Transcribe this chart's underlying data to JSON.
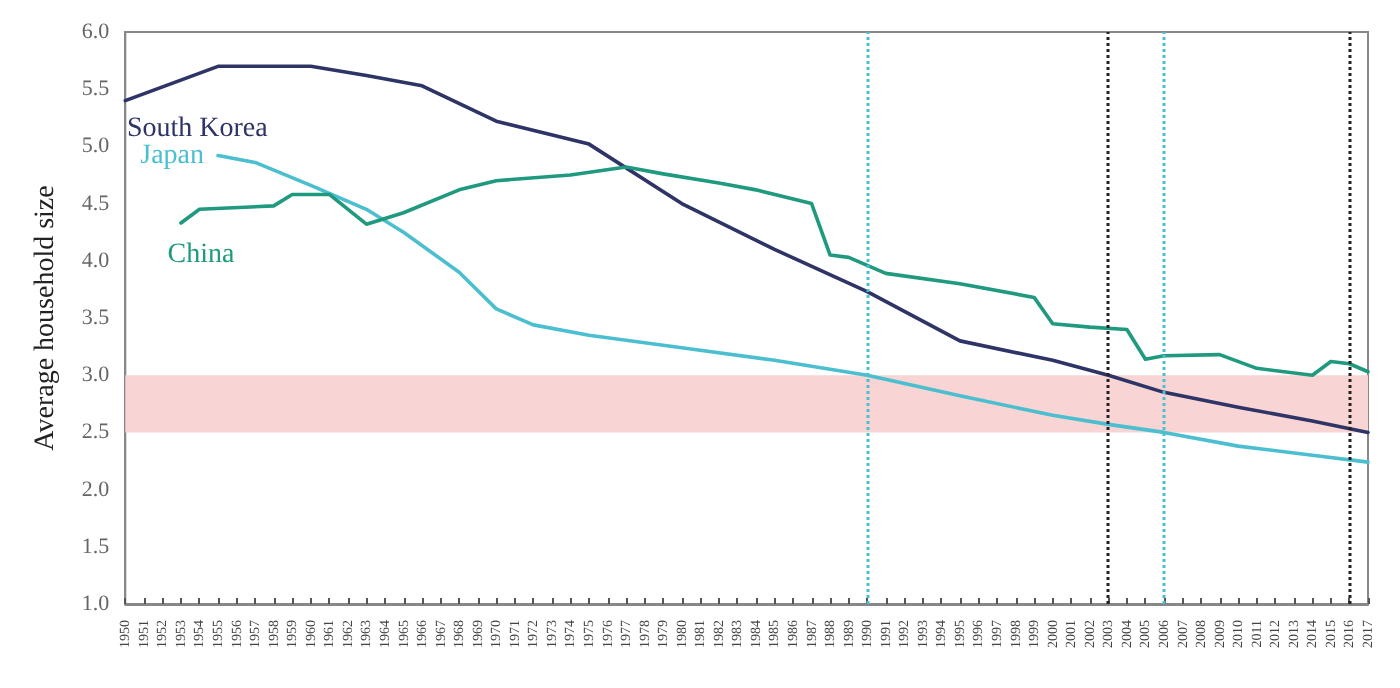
{
  "chart_data": {
    "type": "line",
    "ylabel": "Average household size",
    "xlim": [
      1950,
      2017
    ],
    "xticks": [
      1950,
      1951,
      1952,
      1953,
      1954,
      1955,
      1956,
      1957,
      1958,
      1959,
      1960,
      1961,
      1962,
      1963,
      1964,
      1965,
      1966,
      1967,
      1968,
      1969,
      1970,
      1971,
      1972,
      1973,
      1974,
      1975,
      1976,
      1977,
      1978,
      1979,
      1980,
      1981,
      1982,
      1983,
      1984,
      1985,
      1986,
      1987,
      1988,
      1989,
      1990,
      1991,
      1992,
      1993,
      1994,
      1995,
      1996,
      1997,
      1998,
      1999,
      2000,
      2001,
      2002,
      2003,
      2004,
      2005,
      2006,
      2007,
      2008,
      2009,
      2010,
      2011,
      2012,
      2013,
      2014,
      2015,
      2016,
      2017
    ],
    "ylim": [
      1.0,
      6.0
    ],
    "yticks": [
      {
        "value": 1,
        "label": "1.0"
      },
      {
        "value": 1.5,
        "label": "1.5"
      },
      {
        "value": 2,
        "label": "2.0"
      },
      {
        "value": 2.5,
        "label": "2.5"
      },
      {
        "value": 3,
        "label": "3.0"
      },
      {
        "value": 3.5,
        "label": "3.5"
      },
      {
        "value": 4,
        "label": "4.0"
      },
      {
        "value": 4.5,
        "label": "4.5"
      },
      {
        "value": 5,
        "label": "5.0"
      },
      {
        "value": 5.5,
        "label": "5.5"
      },
      {
        "value": 6,
        "label": "6.0"
      }
    ],
    "series": [
      {
        "name": "South Korea",
        "color": "#2e3466",
        "x": [
          1950,
          1955,
          1960,
          1963,
          1966,
          1970,
          1975,
          1980,
          1985,
          1990,
          1995,
          2000,
          2003,
          2006,
          2010,
          2014,
          2017
        ],
        "values": [
          5.4,
          5.7,
          5.7,
          5.62,
          5.53,
          5.22,
          5.02,
          4.5,
          4.1,
          3.73,
          3.3,
          3.13,
          3.0,
          2.85,
          2.72,
          2.6,
          2.5
        ]
      },
      {
        "name": "Japan",
        "color": "#4bbfcf",
        "x": [
          1955,
          1957,
          1960,
          1963,
          1965,
          1968,
          1970,
          1972,
          1975,
          1980,
          1985,
          1990,
          1995,
          2000,
          2003,
          2006,
          2010,
          2014,
          2017
        ],
        "values": [
          4.92,
          4.86,
          4.66,
          4.45,
          4.25,
          3.9,
          3.58,
          3.44,
          3.35,
          3.24,
          3.13,
          3.0,
          2.82,
          2.65,
          2.57,
          2.5,
          2.38,
          2.3,
          2.24
        ]
      },
      {
        "name": "China",
        "color": "#1f9a7f",
        "x": [
          1953,
          1954,
          1958,
          1959,
          1961,
          1963,
          1965,
          1968,
          1970,
          1974,
          1977,
          1979,
          1982,
          1984,
          1987,
          1988,
          1989,
          1991,
          1995,
          1999,
          2000,
          2002,
          2004,
          2005,
          2006,
          2009,
          2011,
          2014,
          2015,
          2016,
          2017
        ],
        "values": [
          4.33,
          4.45,
          4.48,
          4.58,
          4.58,
          4.32,
          4.42,
          4.62,
          4.7,
          4.75,
          4.82,
          4.76,
          4.68,
          4.62,
          4.5,
          4.05,
          4.03,
          3.89,
          3.8,
          3.68,
          3.45,
          3.42,
          3.4,
          3.14,
          3.17,
          3.18,
          3.06,
          3.0,
          3.12,
          3.1,
          3.03
        ]
      }
    ],
    "bands": [
      {
        "axis": "y",
        "from": 2.5,
        "to": 3.0,
        "color": "#f8d4d4"
      }
    ],
    "ref_lines": [
      {
        "axis": "x",
        "value": 1990,
        "color": "#4bbfcf",
        "line_style": "dotted"
      },
      {
        "axis": "x",
        "value": 2003,
        "color": "#222222",
        "line_style": "dotted"
      },
      {
        "axis": "x",
        "value": 2006,
        "color": "#4bbfcf",
        "line_style": "dotted"
      },
      {
        "axis": "x",
        "value": 2016,
        "color": "#222222",
        "line_style": "dotted"
      }
    ],
    "legend": false,
    "grid": false,
    "marker": "none",
    "line_style": "solid"
  }
}
